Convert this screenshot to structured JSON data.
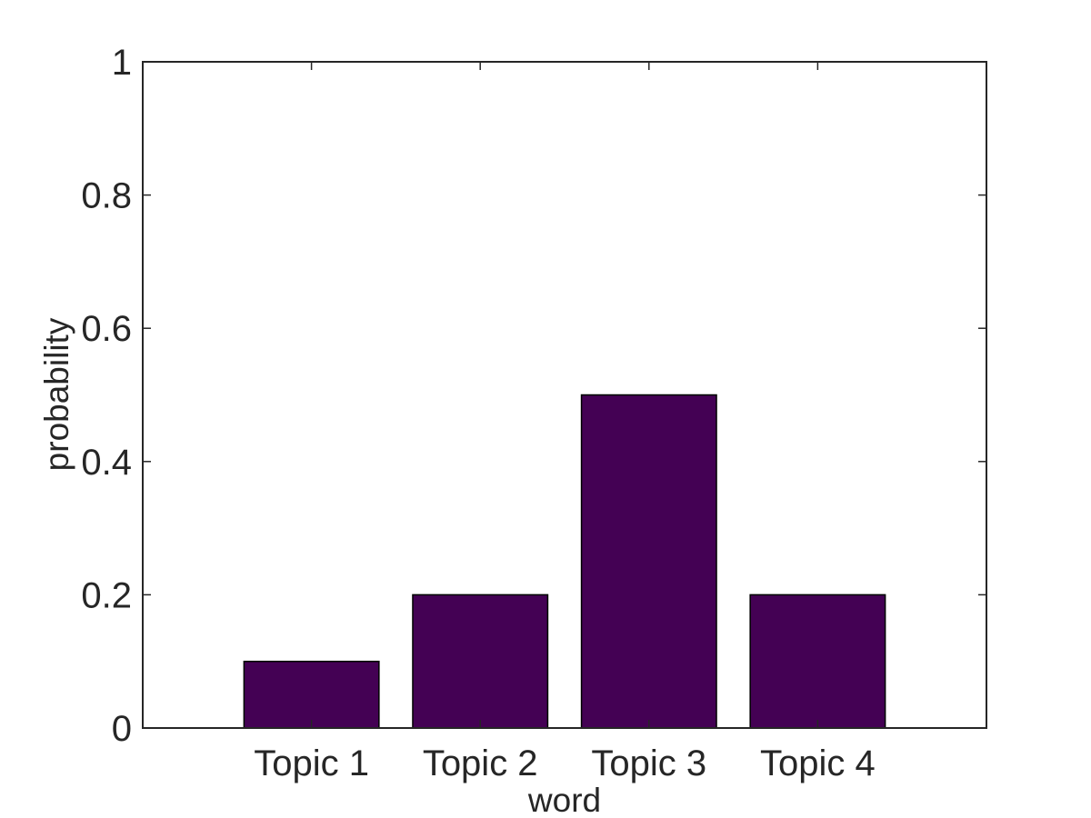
{
  "chart_data": {
    "type": "bar",
    "categories": [
      "Topic 1",
      "Topic 2",
      "Topic 3",
      "Topic 4"
    ],
    "values": [
      0.1,
      0.2,
      0.5,
      0.2
    ],
    "xlabel": "word",
    "ylabel": "probability",
    "ylim": [
      0,
      1
    ],
    "yticks": [
      0,
      0.2,
      0.4,
      0.6,
      0.8,
      1
    ],
    "ytick_labels": [
      "0",
      "0.2",
      "0.4",
      "0.6",
      "0.8",
      "1"
    ],
    "bar_color": "#440154",
    "grid": false,
    "legend": "none"
  }
}
